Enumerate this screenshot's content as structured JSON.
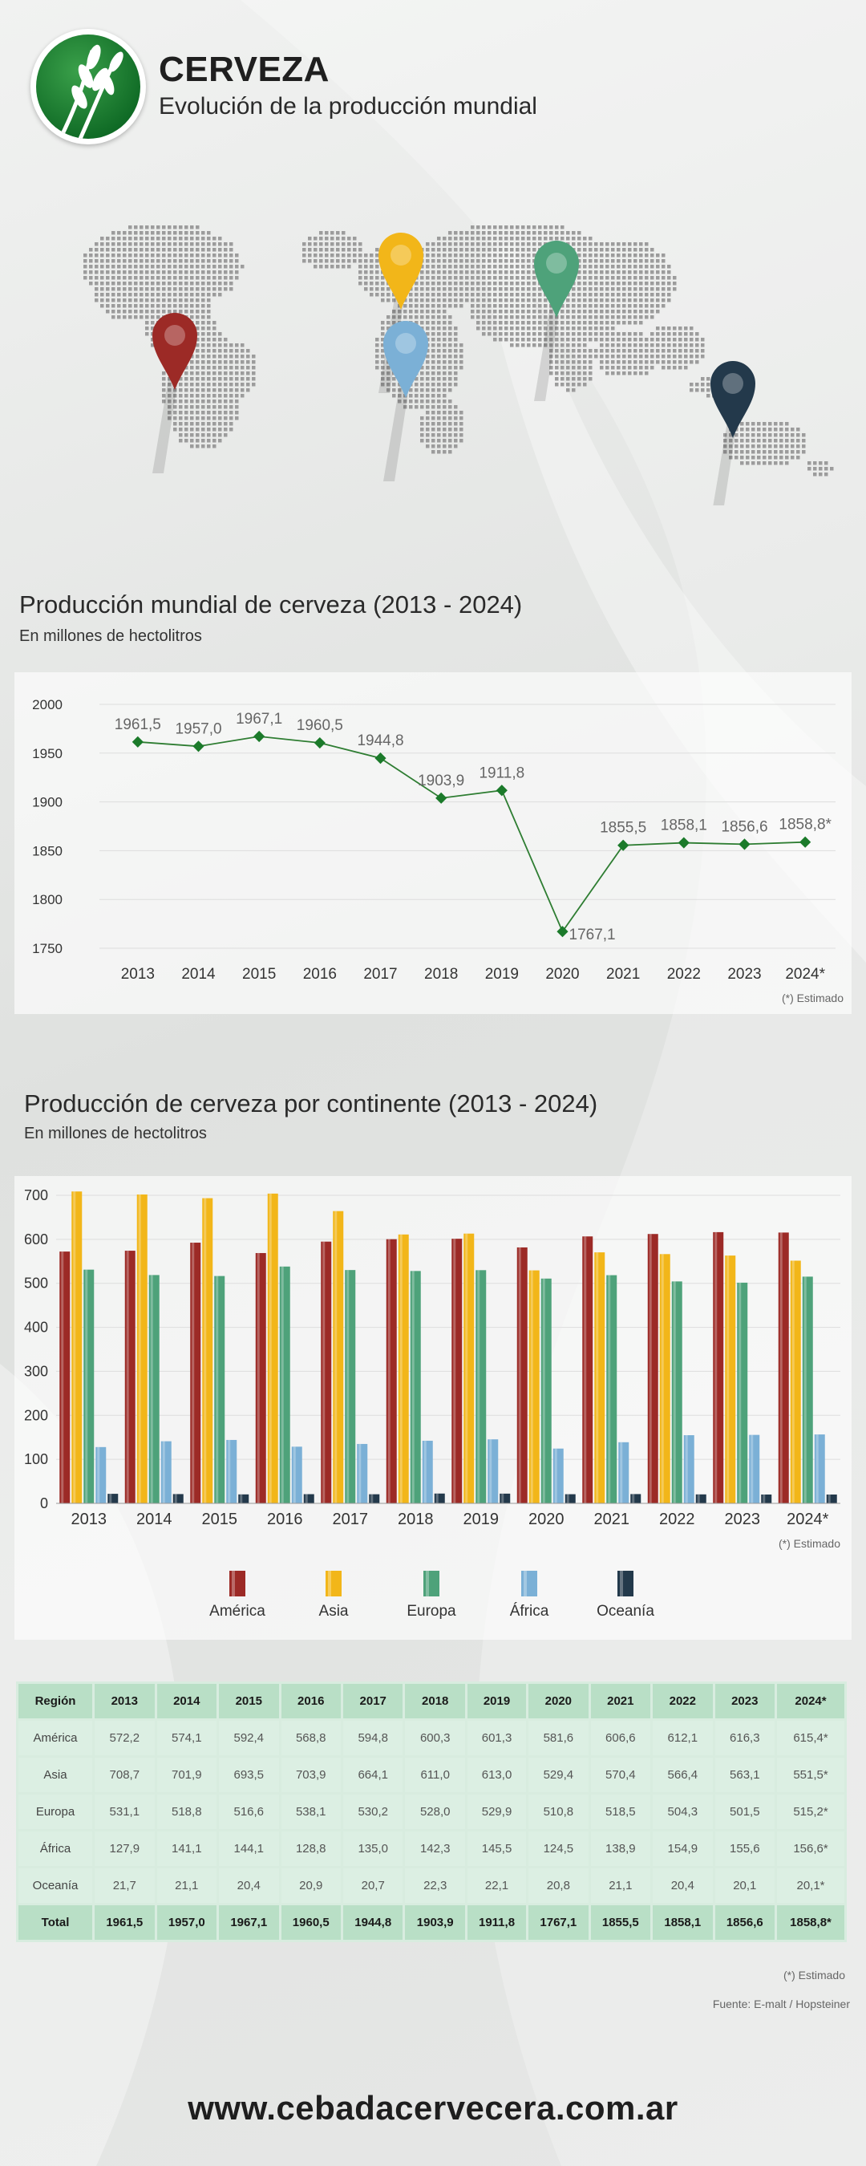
{
  "header": {
    "title": "CERVEZA",
    "subtitle": "Evolución de la producción mundial"
  },
  "section1": {
    "title": "Producción mundial de cerveza (2013 - 2024)",
    "subtitle": "En millones de hectolitros",
    "footnote": "(*) Estimado"
  },
  "section2": {
    "title": "Producción de cerveza por continente (2013 - 2024)",
    "subtitle": "En millones de hectolitros",
    "footnote": "(*) Estimado"
  },
  "table": {
    "headers": [
      "Región",
      "2013",
      "2014",
      "2015",
      "2016",
      "2017",
      "2018",
      "2019",
      "2020",
      "2021",
      "2022",
      "2023",
      "2024*"
    ],
    "rows": [
      [
        "América",
        "572,2",
        "574,1",
        "592,4",
        "568,8",
        "594,8",
        "600,3",
        "601,3",
        "581,6",
        "606,6",
        "612,1",
        "616,3",
        "615,4*"
      ],
      [
        "Asia",
        "708,7",
        "701,9",
        "693,5",
        "703,9",
        "664,1",
        "611,0",
        "613,0",
        "529,4",
        "570,4",
        "566,4",
        "563,1",
        "551,5*"
      ],
      [
        "Europa",
        "531,1",
        "518,8",
        "516,6",
        "538,1",
        "530,2",
        "528,0",
        "529,9",
        "510,8",
        "518,5",
        "504,3",
        "501,5",
        "515,2*"
      ],
      [
        "África",
        "127,9",
        "141,1",
        "144,1",
        "128,8",
        "135,0",
        "142,3",
        "145,5",
        "124,5",
        "138,9",
        "154,9",
        "155,6",
        "156,6*"
      ],
      [
        "Oceanía",
        "21,7",
        "21,1",
        "20,4",
        "20,9",
        "20,7",
        "22,3",
        "22,1",
        "20,8",
        "21,1",
        "20,4",
        "20,1",
        "20,1*"
      ]
    ],
    "total": [
      "Total",
      "1961,5",
      "1957,0",
      "1967,1",
      "1960,5",
      "1944,8",
      "1903,9",
      "1911,8",
      "1767,1",
      "1855,5",
      "1858,1",
      "1856,6",
      "1858,8*"
    ],
    "footnote": "(*) Estimado",
    "source": "Fuente: E-malt / Hopsteiner"
  },
  "website": "www.cebadacervecera.com.ar",
  "map_pins": [
    {
      "name": "america",
      "color": "#9c2a26"
    },
    {
      "name": "asia",
      "color": "#f2b619"
    },
    {
      "name": "africa",
      "color": "#7bb0d6"
    },
    {
      "name": "europa",
      "color": "#4ea27a"
    },
    {
      "name": "oceania",
      "color": "#23394b"
    }
  ],
  "colors": {
    "line": "#2e7d32",
    "marker": "#1b7a2a"
  },
  "chart_data": [
    {
      "type": "line",
      "categories": [
        "2013",
        "2014",
        "2015",
        "2016",
        "2017",
        "2018",
        "2019",
        "2020",
        "2021",
        "2022",
        "2023",
        "2024*"
      ],
      "values": [
        1961.5,
        1957.0,
        1967.1,
        1960.5,
        1944.8,
        1903.9,
        1911.8,
        1767.1,
        1855.5,
        1858.1,
        1856.6,
        1858.8
      ],
      "labels": [
        "1961,5",
        "1957,0",
        "1967,1",
        "1960,5",
        "1944,8",
        "1903,9",
        "1911,8",
        "1767,1",
        "1855,5",
        "1858,1",
        "1856,6",
        "1858,8*"
      ],
      "yticks": [
        1750,
        1800,
        1850,
        1900,
        1950,
        2000
      ],
      "ylim": [
        1750,
        2000
      ],
      "grid": true
    },
    {
      "type": "bar",
      "categories": [
        "2013",
        "2014",
        "2015",
        "2016",
        "2017",
        "2018",
        "2019",
        "2020",
        "2021",
        "2022",
        "2023",
        "2024*"
      ],
      "series": [
        {
          "name": "América",
          "color": "#9c2a26",
          "values": [
            572.2,
            574.1,
            592.4,
            568.8,
            594.8,
            600.3,
            601.3,
            581.6,
            606.6,
            612.1,
            616.3,
            615.4
          ]
        },
        {
          "name": "Asia",
          "color": "#f2b619",
          "values": [
            708.7,
            701.9,
            693.5,
            703.9,
            664.1,
            611.0,
            613.0,
            529.4,
            570.4,
            566.4,
            563.1,
            551.5
          ]
        },
        {
          "name": "Europa",
          "color": "#4ea27a",
          "values": [
            531.1,
            518.8,
            516.6,
            538.1,
            530.2,
            528.0,
            529.9,
            510.8,
            518.5,
            504.3,
            501.5,
            515.2
          ]
        },
        {
          "name": "África",
          "color": "#7bb0d6",
          "values": [
            127.9,
            141.1,
            144.1,
            128.8,
            135.0,
            142.3,
            145.5,
            124.5,
            138.9,
            154.9,
            155.6,
            156.6
          ]
        },
        {
          "name": "Oceanía",
          "color": "#23394b",
          "values": [
            21.7,
            21.1,
            20.4,
            20.9,
            20.7,
            22.3,
            22.1,
            20.8,
            21.1,
            20.4,
            20.1,
            20.1
          ]
        }
      ],
      "yticks": [
        0,
        100,
        200,
        300,
        400,
        500,
        600,
        700
      ],
      "ylim": [
        0,
        700
      ],
      "grid": true,
      "legend": "bottom"
    }
  ]
}
